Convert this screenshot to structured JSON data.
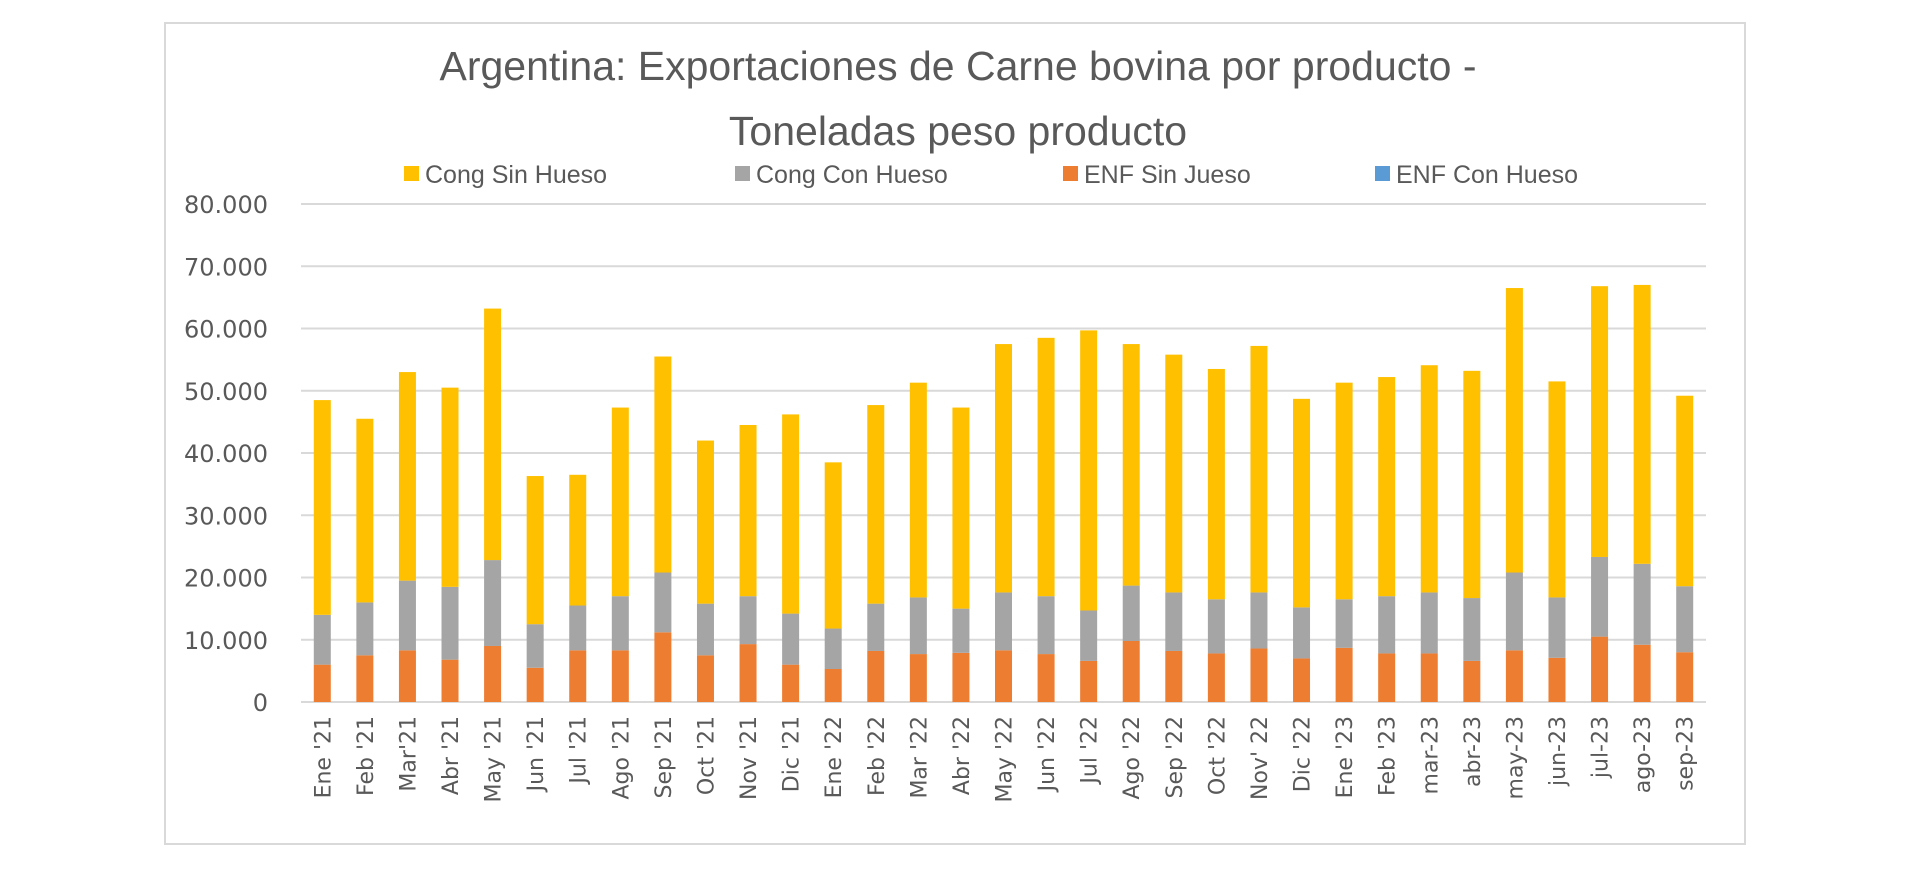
{
  "chart_data": {
    "type": "bar",
    "stacked": true,
    "title_lines": [
      "Argentina: Exportaciones de Carne bovina por producto -",
      "Toneladas peso producto"
    ],
    "xlabel": "",
    "ylabel": "",
    "ylim": [
      0,
      80000
    ],
    "yticks": [
      0,
      10000,
      20000,
      30000,
      40000,
      50000,
      60000,
      70000,
      80000
    ],
    "ytick_labels": [
      "0",
      "10.000",
      "20.000",
      "30.000",
      "40.000",
      "50.000",
      "60.000",
      "70.000",
      "80.000"
    ],
    "grid": true,
    "legend_position": "top",
    "categories": [
      "Ene '21",
      "Feb '21",
      "Mar'21",
      "Abr '21",
      "May '21",
      "Jun '21",
      "Jul '21",
      "Ago '21",
      "Sep '21",
      "Oct '21",
      "Nov '21",
      "Dic '21",
      "Ene '22",
      "Feb '22",
      "Mar '22",
      "Abr '22",
      "May '22",
      "Jun '22",
      "Jul '22",
      "Ago '22",
      "Sep '22",
      "Oct '22",
      "Nov' 22",
      "Dic '22",
      "Ene '23",
      "Feb '23",
      "mar-23",
      "abr-23",
      "may-23",
      "jun-23",
      "jul-23",
      "ago-23",
      "sep-23"
    ],
    "series": [
      {
        "name": "ENF Sin Jueso",
        "color": "#ed7d31",
        "values": [
          6000,
          7500,
          8300,
          6800,
          9000,
          5500,
          8300,
          8300,
          11200,
          7500,
          9300,
          6000,
          5300,
          8200,
          7700,
          7900,
          8300,
          7700,
          6600,
          9800,
          8200,
          7800,
          8600,
          7000,
          8700,
          7800,
          7800,
          6600,
          8300,
          7100,
          10500,
          9200,
          8000
        ]
      },
      {
        "name": "ENF Con Hueso",
        "color": "#5b9bd5",
        "values": [
          0,
          0,
          0,
          0,
          0,
          0,
          0,
          0,
          0,
          0,
          0,
          0,
          0,
          0,
          0,
          0,
          0,
          0,
          0,
          0,
          0,
          0,
          0,
          0,
          0,
          0,
          0,
          0,
          0,
          0,
          0,
          0,
          0
        ]
      },
      {
        "name": "Cong Con Hueso",
        "color": "#a5a5a5",
        "values": [
          8000,
          8500,
          11200,
          11700,
          13800,
          7000,
          7200,
          8700,
          9600,
          8300,
          7700,
          8200,
          6500,
          7600,
          9100,
          7100,
          9300,
          9300,
          8100,
          8900,
          9400,
          8700,
          9000,
          8200,
          7800,
          9200,
          9800,
          10100,
          12500,
          9700,
          12800,
          13000,
          10600
        ]
      },
      {
        "name": "Cong Sin Hueso",
        "color": "#ffc000",
        "values": [
          34500,
          29500,
          33500,
          32000,
          40400,
          23800,
          21000,
          30300,
          34700,
          26200,
          27500,
          32000,
          26700,
          31900,
          34500,
          32300,
          39900,
          41500,
          45000,
          38800,
          38200,
          37000,
          39600,
          33500,
          34800,
          35200,
          36500,
          36500,
          45700,
          34700,
          43500,
          44800,
          30600
        ]
      }
    ],
    "legend": [
      {
        "label": "Cong Sin Hueso",
        "color": "#ffc000"
      },
      {
        "label": "Cong Con Hueso",
        "color": "#a5a5a5"
      },
      {
        "label": "ENF Sin Jueso",
        "color": "#ed7d31"
      },
      {
        "label": "ENF Con Hueso",
        "color": "#5b9bd5"
      }
    ]
  }
}
